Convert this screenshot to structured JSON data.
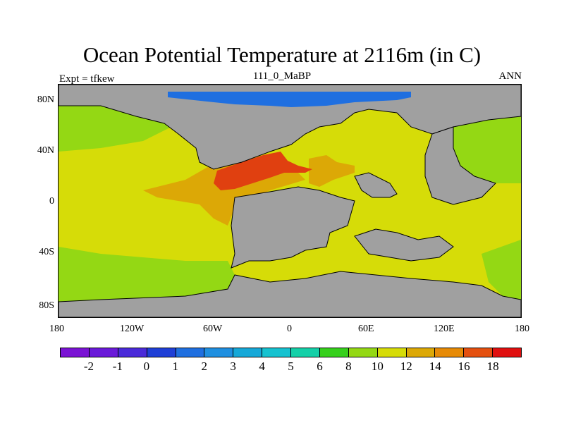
{
  "title": "Ocean Potential Temperature at 2116m (in C)",
  "subtitle": "111_0_MaBP",
  "left_label": "Expt = tfkew",
  "right_label": "ANN",
  "x_axis_ticks": [
    "180",
    "120W",
    "60W",
    "0",
    "60E",
    "120E",
    "180"
  ],
  "y_axis_ticks": [
    "80N",
    "40N",
    "0",
    "40S",
    "80S"
  ],
  "colorbar": {
    "colors": [
      "#7a13d4",
      "#6a1ad9",
      "#4a2ad9",
      "#1f3fd6",
      "#1f6fe0",
      "#1f8fe0",
      "#16a8d8",
      "#16c2d0",
      "#14d0a8",
      "#36d01c",
      "#94d814",
      "#d6dc08",
      "#dca806",
      "#e68a06",
      "#e45010",
      "#e01010"
    ],
    "labels": [
      "-2",
      "-1",
      "0",
      "1",
      "2",
      "3",
      "4",
      "5",
      "6",
      "8",
      "10",
      "12",
      "14",
      "16",
      "18"
    ]
  },
  "map_colors": {
    "land": "#a0a0a0",
    "cold": "#1f6fe0",
    "t10": "#94d814",
    "t12": "#d6dc08",
    "t14": "#dca806",
    "t18": "#e04010"
  }
}
